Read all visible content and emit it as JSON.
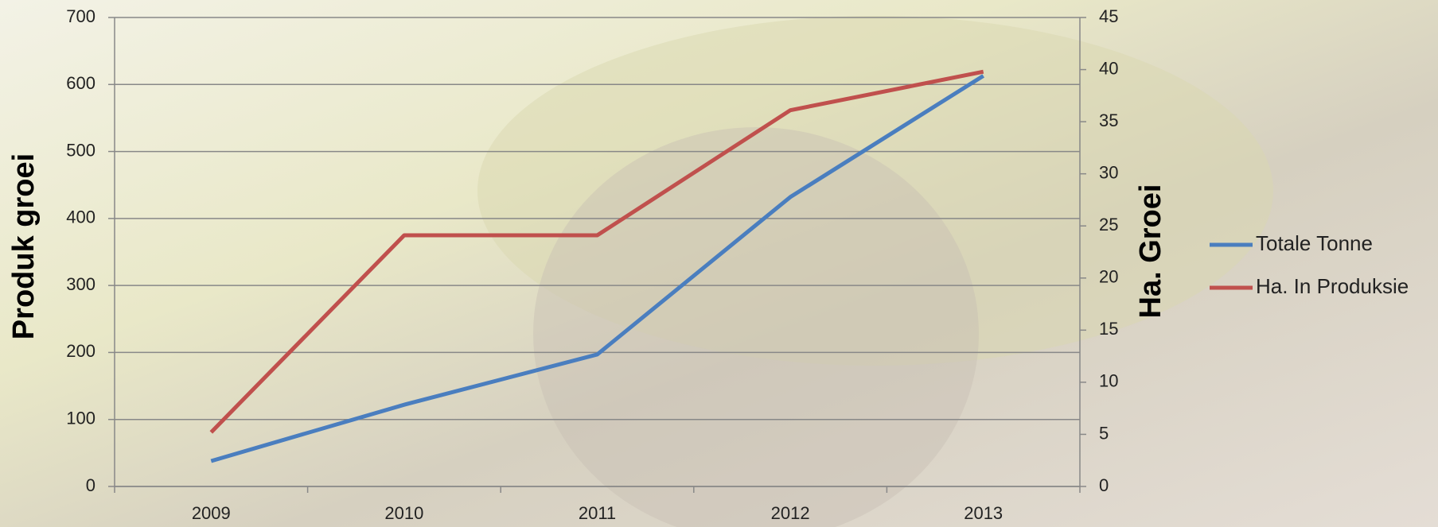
{
  "chart_data": {
    "type": "line",
    "categories": [
      "2009",
      "2010",
      "2011",
      "2012",
      "2013"
    ],
    "y_label": "Produk groei",
    "y2_label": "Ha. Groei",
    "ylim": [
      0,
      700
    ],
    "yticks": [
      0,
      100,
      200,
      300,
      400,
      500,
      600,
      700
    ],
    "y2lim": [
      0,
      45
    ],
    "y2ticks": [
      0,
      5,
      10,
      15,
      20,
      25,
      30,
      35,
      40,
      45
    ],
    "grid": true,
    "legend": "right",
    "series": [
      {
        "name": "Totale Tonne",
        "color": "#4a7ebf",
        "values": [
          38,
          122,
          197,
          432,
          613
        ]
      },
      {
        "name": "Ha. In Produksie",
        "color": "#c0504d",
        "values": [
          5.2,
          24.1,
          24.1,
          36.1,
          39.8
        ],
        "axis": "y2"
      }
    ]
  }
}
